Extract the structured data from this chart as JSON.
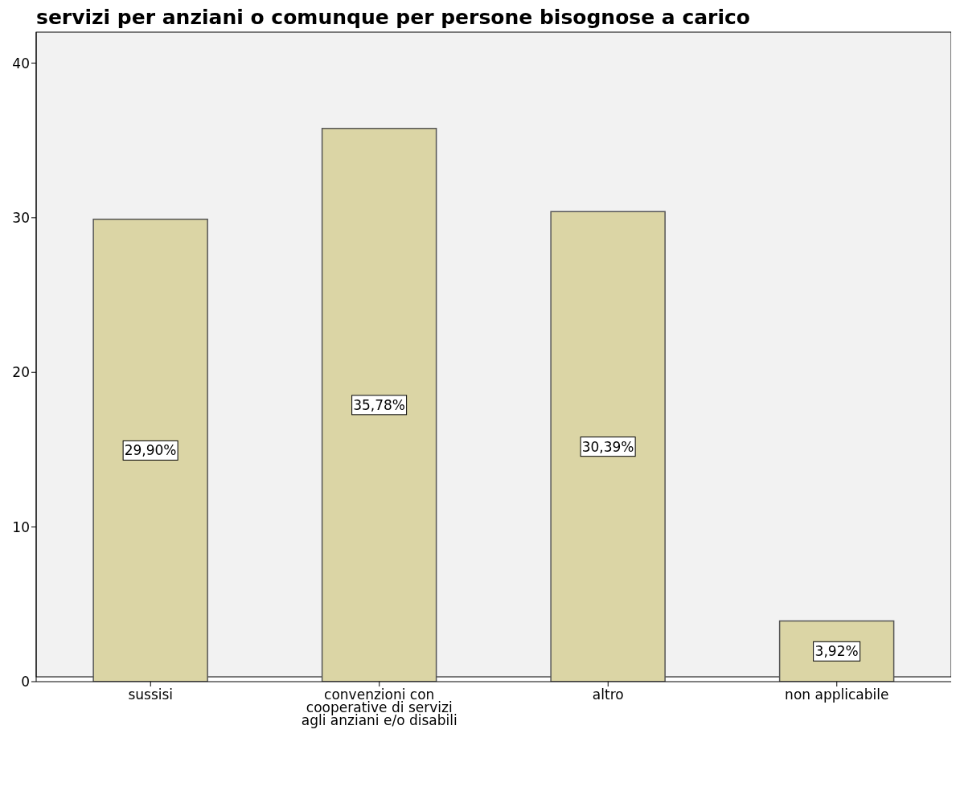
{
  "chart_data": {
    "type": "bar",
    "title": "servizi per anziani o comunque per persone bisognose a carico",
    "categories": [
      "sussisi",
      "convenzioni con\ncooperative di servizi\nagli anziani e/o disabili",
      "altro",
      "non applicabile"
    ],
    "values": [
      29.9,
      35.78,
      30.39,
      3.92
    ],
    "value_labels": [
      "29,90%",
      "35,78%",
      "30,39%",
      "3,92%"
    ],
    "color": "#dbd5a5",
    "ylim": [
      0,
      42
    ],
    "yticks": [
      0,
      10,
      20,
      30,
      40
    ],
    "grid": false,
    "legend": false
  }
}
